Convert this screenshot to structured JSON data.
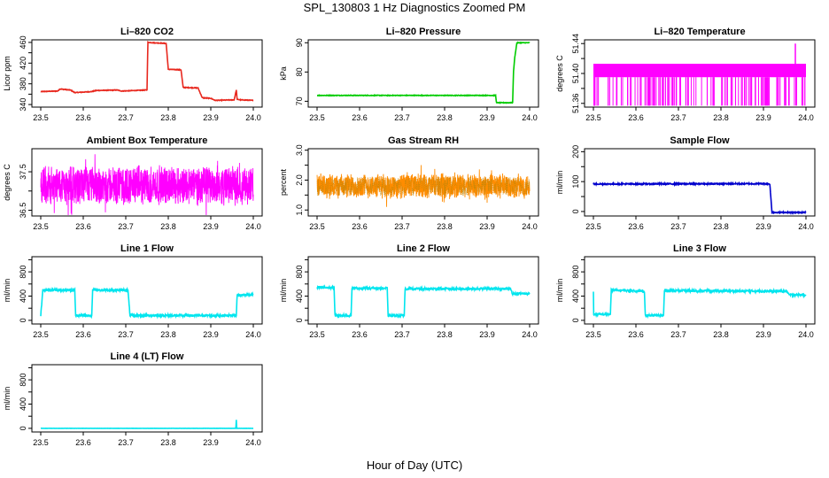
{
  "figure": {
    "title": "SPL_130803  1 Hz Diagnostics Zoomed PM",
    "xlabel": "Hour of Day (UTC)"
  },
  "chart_data": [
    {
      "id": "co2",
      "type": "line",
      "title": "Li–820 CO2",
      "ylabel": "Licor ppm",
      "color": "#e8281e",
      "noise": 0.6,
      "xlim": [
        23.5,
        24.0
      ],
      "ylim": [
        335,
        465
      ],
      "yticks": [
        340,
        360,
        380,
        400,
        420,
        440,
        460
      ],
      "yticklabels": [
        "340",
        "",
        "380",
        "",
        "420",
        "",
        "460"
      ],
      "x": [
        23.5,
        23.54,
        23.545,
        23.57,
        23.58,
        23.62,
        23.63,
        23.68,
        23.69,
        23.75,
        23.752,
        23.795,
        23.8,
        23.83,
        23.835,
        23.87,
        23.88,
        23.9,
        23.91,
        23.955,
        23.96,
        23.962,
        23.97,
        24.0
      ],
      "y": [
        365,
        366,
        370,
        368,
        363,
        365,
        367,
        368,
        366,
        368,
        460,
        458,
        408,
        407,
        373,
        372,
        353,
        352,
        348,
        349,
        368,
        350,
        349,
        348
      ]
    },
    {
      "id": "pressure",
      "type": "line",
      "title": "Li–820 Pressure",
      "ylabel": "kPa",
      "color": "#00cc00",
      "noise": 0.1,
      "xlim": [
        23.5,
        24.0
      ],
      "ylim": [
        68,
        91
      ],
      "yticks": [
        70,
        80,
        90
      ],
      "yticklabels": [
        "70",
        "80",
        "90"
      ],
      "x": [
        23.5,
        23.92,
        23.922,
        23.96,
        23.962,
        23.965,
        23.97,
        24.0
      ],
      "y": [
        72,
        72,
        69.5,
        69.5,
        80,
        85,
        90,
        90
      ]
    },
    {
      "id": "licor-temp",
      "type": "band",
      "title": "Li–820 Temperature",
      "ylabel": "degrees C",
      "color": "#ff00ff",
      "xlim": [
        23.5,
        24.0
      ],
      "ylim": [
        51.355,
        51.445
      ],
      "yticks": [
        51.36,
        51.38,
        51.4,
        51.42,
        51.44
      ],
      "yticklabels": [
        "51.36",
        "",
        "51.40",
        "",
        "51.44"
      ],
      "band_low": 51.395,
      "band_high": 51.413,
      "dip_to": 51.357,
      "dips": 130,
      "spike_x": 23.975,
      "spike_y": 51.44
    },
    {
      "id": "ambient-temp",
      "type": "noise",
      "title": "Ambient Box Temperature",
      "ylabel": "degrees C",
      "color": "#ff00ff",
      "xlim": [
        23.5,
        24.0
      ],
      "ylim": [
        36.35,
        38.1
      ],
      "yticks": [
        36.5,
        37.0,
        37.5
      ],
      "yticklabels": [
        "36.5",
        "",
        "37.5"
      ],
      "center": 37.15,
      "amplitude": 0.55
    },
    {
      "id": "rh",
      "type": "noise",
      "title": "Gas Stream RH",
      "ylabel": "percent",
      "color": "#ff8c00",
      "color2": "#b8860b",
      "xlim": [
        23.5,
        24.0
      ],
      "ylim": [
        0.8,
        3.05
      ],
      "yticks": [
        1.0,
        1.5,
        2.0,
        2.5,
        3.0
      ],
      "yticklabels": [
        "1.0",
        "",
        "2.0",
        "",
        "3.0"
      ],
      "center": 1.8,
      "amplitude": 0.45
    },
    {
      "id": "sample-flow",
      "type": "line",
      "title": "Sample Flow",
      "ylabel": "ml/min",
      "color": "#0000cc",
      "noise": 2,
      "xlim": [
        23.5,
        24.0
      ],
      "ylim": [
        -15,
        210
      ],
      "yticks": [
        0,
        50,
        100,
        150,
        200
      ],
      "yticklabels": [
        "0",
        "",
        "100",
        "",
        "200"
      ],
      "x": [
        23.5,
        23.91,
        23.915,
        23.92,
        24.0
      ],
      "y": [
        92,
        93,
        92,
        -3,
        -3
      ]
    },
    {
      "id": "line1",
      "type": "line",
      "title": "Line 1 Flow",
      "ylabel": "ml/min",
      "color": "#00e5ee",
      "noise": 18,
      "xlim": [
        23.5,
        24.0
      ],
      "ylim": [
        -60,
        1050
      ],
      "yticks": [
        0,
        200,
        400,
        600,
        800,
        1000
      ],
      "yticklabels": [
        "0",
        "",
        "400",
        "",
        "800",
        ""
      ],
      "x": [
        23.5,
        23.505,
        23.58,
        23.582,
        23.62,
        23.622,
        23.705,
        23.71,
        23.96,
        23.962,
        24.0
      ],
      "y": [
        80,
        500,
        500,
        80,
        80,
        500,
        500,
        80,
        80,
        420,
        420
      ]
    },
    {
      "id": "line2",
      "type": "line",
      "title": "Line 2 Flow",
      "ylabel": "ml/min",
      "color": "#00e5ee",
      "noise": 18,
      "xlim": [
        23.5,
        24.0
      ],
      "ylim": [
        -60,
        1050
      ],
      "yticks": [
        0,
        200,
        400,
        600,
        800,
        1000
      ],
      "yticklabels": [
        "0",
        "",
        "400",
        "",
        "800",
        ""
      ],
      "x": [
        23.5,
        23.54,
        23.542,
        23.58,
        23.582,
        23.665,
        23.667,
        23.705,
        23.707,
        23.955,
        23.96,
        24.0
      ],
      "y": [
        540,
        540,
        80,
        80,
        530,
        530,
        80,
        80,
        520,
        520,
        440,
        440
      ]
    },
    {
      "id": "line3",
      "type": "line",
      "title": "Line 3 Flow",
      "ylabel": "ml/min",
      "color": "#00e5ee",
      "noise": 18,
      "xlim": [
        23.5,
        24.0
      ],
      "ylim": [
        -60,
        1050
      ],
      "yticks": [
        0,
        200,
        400,
        600,
        800,
        1000
      ],
      "yticklabels": [
        "0",
        "",
        "400",
        "",
        "800",
        ""
      ],
      "x": [
        23.5,
        23.5,
        23.502,
        23.54,
        23.542,
        23.62,
        23.622,
        23.665,
        23.667,
        23.955,
        23.96,
        24.0
      ],
      "y": [
        480,
        100,
        100,
        100,
        500,
        480,
        80,
        80,
        490,
        480,
        420,
        420
      ]
    },
    {
      "id": "line4",
      "type": "line",
      "title": "Line 4 (LT) Flow",
      "ylabel": "ml/min",
      "color": "#00e5ee",
      "noise": 1,
      "xlim": [
        23.5,
        24.0
      ],
      "ylim": [
        -60,
        1050
      ],
      "yticks": [
        0,
        200,
        400,
        600,
        800,
        1000
      ],
      "yticklabels": [
        "0",
        "",
        "400",
        "",
        "800",
        ""
      ],
      "x": [
        23.5,
        23.959,
        23.96,
        23.961,
        23.962,
        24.0
      ],
      "y": [
        0,
        0,
        140,
        0,
        0,
        0
      ]
    }
  ],
  "xticks": [
    23.5,
    23.6,
    23.7,
    23.8,
    23.9,
    24.0
  ],
  "xticklabels": [
    "23.5",
    "23.6",
    "23.7",
    "23.8",
    "23.9",
    "24.0"
  ]
}
